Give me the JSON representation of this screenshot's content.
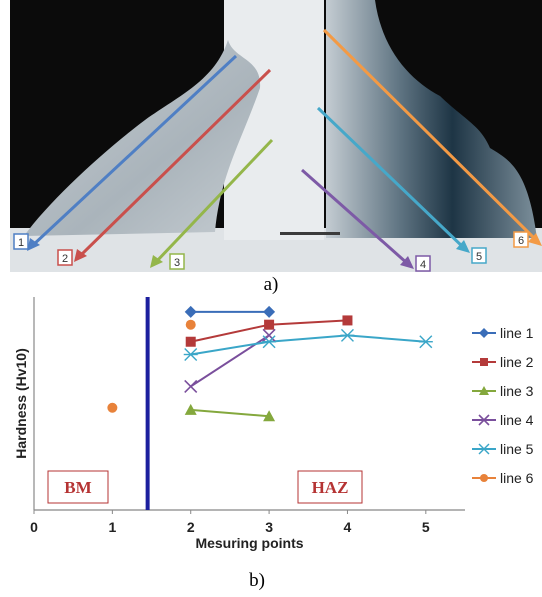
{
  "photo": {
    "colors": {
      "background": "#0a0a0a",
      "weld_light": "#dde1e4",
      "weld_mid": "#a8b3bb",
      "haz_dark": "#1d3444"
    },
    "arrows": [
      {
        "label": "1",
        "color": "#4f7fc4"
      },
      {
        "label": "2",
        "color": "#c9504c"
      },
      {
        "label": "3",
        "color": "#94b64a"
      },
      {
        "label": "4",
        "color": "#7d5aa6"
      },
      {
        "label": "5",
        "color": "#46a8c9"
      },
      {
        "label": "6",
        "color": "#f39a45"
      }
    ]
  },
  "captions": {
    "a": "a)",
    "b": "b)"
  },
  "chart_data": {
    "type": "line",
    "xlabel": "Mesuring points",
    "ylabel": "Hardness (Hv10)",
    "xlim": [
      0,
      5.5
    ],
    "ylim": [
      0,
      10
    ],
    "xticks": [
      "0",
      "1",
      "2",
      "3",
      "4",
      "5"
    ],
    "grid": false,
    "legend_position": "right (cropped)",
    "divider_x": 1.45,
    "divider_color": "#1c1f9e",
    "regions": [
      {
        "label": "BM"
      },
      {
        "label": "HAZ"
      }
    ],
    "series": [
      {
        "name": "line 1",
        "color": "#3a6db8",
        "marker": "diamond",
        "x": [
          2,
          3
        ],
        "y": [
          9.3,
          9.3
        ]
      },
      {
        "name": "line 2",
        "color": "#b43a3a",
        "marker": "square",
        "x": [
          2,
          3,
          4
        ],
        "y": [
          7.9,
          8.7,
          8.9
        ]
      },
      {
        "name": "line 3",
        "color": "#84a83d",
        "marker": "triangle",
        "x": [
          2,
          3
        ],
        "y": [
          4.7,
          4.4
        ]
      },
      {
        "name": "line 4",
        "color": "#7a4f9c",
        "marker": "x",
        "x": [
          2,
          3
        ],
        "y": [
          5.8,
          8.2
        ]
      },
      {
        "name": "line 5",
        "color": "#3aa6c8",
        "marker": "star",
        "x": [
          2,
          3,
          4,
          5
        ],
        "y": [
          7.3,
          7.9,
          8.2,
          7.9
        ]
      },
      {
        "name": "line 6",
        "color": "#e8823a",
        "marker": "circle",
        "x": [
          1,
          2
        ],
        "y": [
          4.8,
          8.7
        ]
      }
    ]
  }
}
